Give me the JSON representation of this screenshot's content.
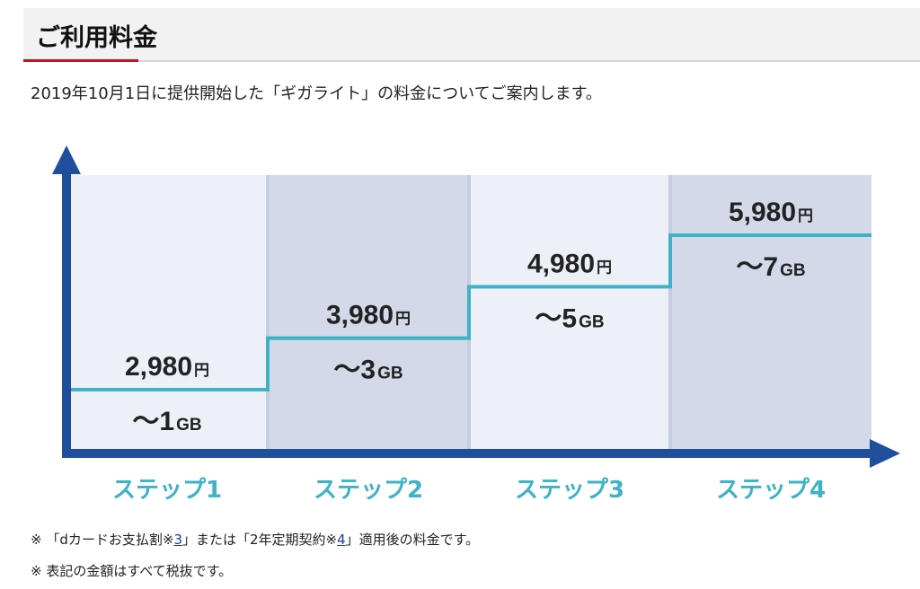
{
  "section": {
    "title": "ご利用料金"
  },
  "intro": "2019年10月1日に提供開始した「ギガライト」の料金についてご案内します。",
  "colors": {
    "panel_light": "#eef0f8",
    "panel_dark": "#d3d9e9",
    "step_line": "#3eb3c7",
    "axis": "#1f4f9c",
    "step_label": "#3eb3c7",
    "accent": "#c8102e"
  },
  "chart_data": {
    "type": "line",
    "step": true,
    "categories": [
      "ステップ1",
      "ステップ2",
      "ステップ3",
      "ステップ4"
    ],
    "series": [
      {
        "values": [
          2980,
          3980,
          4980,
          5980
        ]
      }
    ],
    "price_labels": [
      "2,980",
      "3,980",
      "4,980",
      "5,980"
    ],
    "price_unit": "円",
    "data_labels": [
      "～1",
      "～3",
      "～5",
      "～7"
    ],
    "data_unit": "GB",
    "grid": false,
    "legend": "none"
  },
  "notes": {
    "note1": {
      "prefix": "※ 「dカードお支払割※",
      "link1": "3",
      "middle": "」または「2年定期契約※",
      "link2": "4",
      "suffix": "」適用後の料金です。"
    },
    "note2": "※ 表記の金額はすべて税抜です。"
  }
}
